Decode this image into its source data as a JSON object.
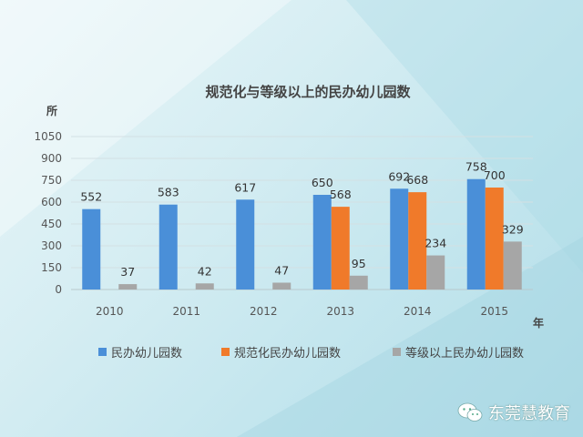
{
  "chart_data": {
    "type": "bar",
    "title": "规范化与等级以上的民办幼儿园数",
    "y_unit_label": "所",
    "x_unit_label": "年",
    "categories": [
      "2010",
      "2011",
      "2012",
      "2013",
      "2014",
      "2015"
    ],
    "ylim": [
      0,
      1050
    ],
    "yticks": [
      "0",
      "150",
      "300",
      "450",
      "600",
      "750",
      "900",
      "1050"
    ],
    "grid": true,
    "legend_position": "bottom",
    "series": [
      {
        "name": "民办幼儿园数",
        "color": "#4a8fd8",
        "values": [
          552,
          583,
          617,
          650,
          692,
          758
        ],
        "labels": [
          "552",
          "583",
          "617",
          "650",
          "692",
          "758"
        ]
      },
      {
        "name": "规范化民办幼儿园数",
        "color": "#f07a2a",
        "values": [
          null,
          null,
          null,
          568,
          668,
          700
        ],
        "labels": [
          "",
          "",
          "",
          "568",
          "668",
          "700"
        ]
      },
      {
        "name": "等级以上民办幼儿园数",
        "color": "#a6a6a6",
        "values": [
          37,
          42,
          47,
          95,
          234,
          329
        ],
        "labels": [
          "37",
          "42",
          "47",
          "95",
          "234",
          "329"
        ]
      }
    ]
  },
  "watermark": {
    "text": "东莞慧教育",
    "icon": "wechat-icon"
  }
}
